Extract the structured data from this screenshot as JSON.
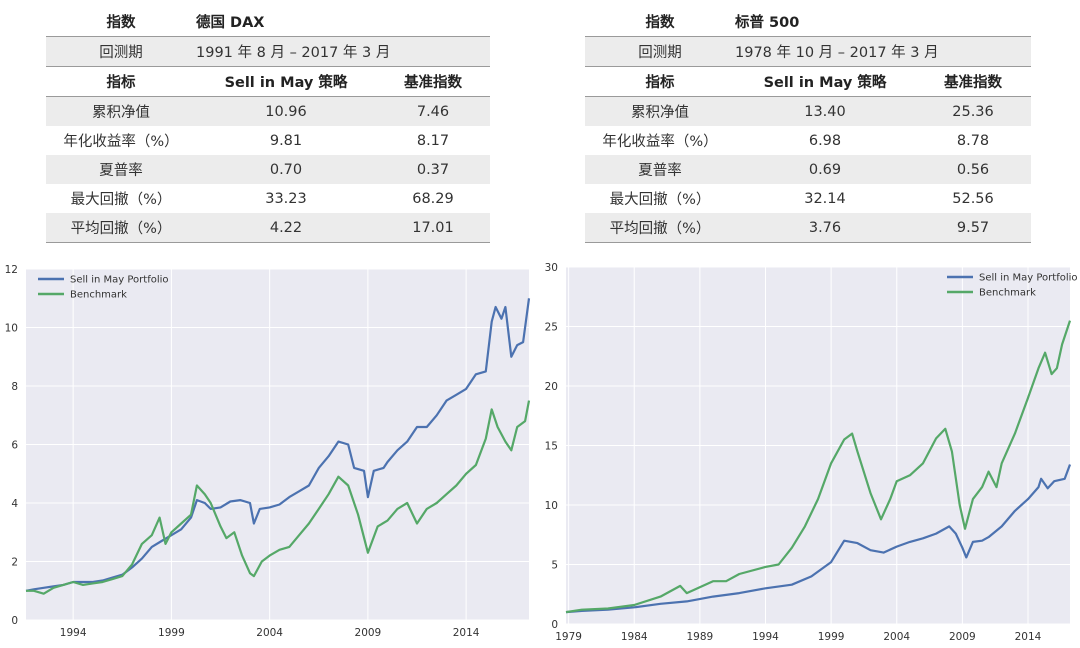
{
  "tables": [
    {
      "index_label": "指数",
      "index_value": "德国 DAX",
      "period_label": "回测期",
      "period_value": "1991 年 8 月 – 2017 年 3 月",
      "col_metric": "指标",
      "col_strategy": "Sell in May 策略",
      "col_bench": "基准指数",
      "rows": [
        {
          "metric": "累积净值",
          "strategy": "10.96",
          "bench": "7.46"
        },
        {
          "metric": "年化收益率（%）",
          "strategy": "9.81",
          "bench": "8.17"
        },
        {
          "metric": "夏普率",
          "strategy": "0.70",
          "bench": "0.37"
        },
        {
          "metric": "最大回撤（%）",
          "strategy": "33.23",
          "bench": "68.29"
        },
        {
          "metric": "平均回撤（%）",
          "strategy": "4.22",
          "bench": "17.01"
        }
      ]
    },
    {
      "index_label": "指数",
      "index_value": "标普 500",
      "period_label": "回测期",
      "period_value": "1978 年 10 月 – 2017 年 3 月",
      "col_metric": "指标",
      "col_strategy": "Sell in May 策略",
      "col_bench": "基准指数",
      "rows": [
        {
          "metric": "累积净值",
          "strategy": "13.40",
          "bench": "25.36"
        },
        {
          "metric": "年化收益率（%）",
          "strategy": "6.98",
          "bench": "8.78"
        },
        {
          "metric": "夏普率",
          "strategy": "0.69",
          "bench": "0.56"
        },
        {
          "metric": "最大回撤（%）",
          "strategy": "32.14",
          "bench": "52.56"
        },
        {
          "metric": "平均回撤（%）",
          "strategy": "3.76",
          "bench": "9.57"
        }
      ]
    }
  ],
  "chart_data": [
    {
      "type": "line",
      "title": "",
      "xlabel": "",
      "ylabel": "",
      "xlim": [
        1991.6,
        2017.2
      ],
      "ylim": [
        0,
        12
      ],
      "xticks": [
        1994,
        1999,
        2004,
        2009,
        2014
      ],
      "yticks": [
        0,
        2,
        4,
        6,
        8,
        10,
        12
      ],
      "grid": true,
      "legend_position": "top-left",
      "series": [
        {
          "name": "Sell in May Portfolio",
          "color": "#4c72b0",
          "points": [
            [
              1991.6,
              1.0
            ],
            [
              1992.0,
              1.05
            ],
            [
              1992.5,
              1.1
            ],
            [
              1993.0,
              1.15
            ],
            [
              1993.5,
              1.2
            ],
            [
              1994.0,
              1.3
            ],
            [
              1994.5,
              1.3
            ],
            [
              1995.0,
              1.3
            ],
            [
              1995.5,
              1.35
            ],
            [
              1996.0,
              1.45
            ],
            [
              1996.5,
              1.55
            ],
            [
              1997.0,
              1.8
            ],
            [
              1997.5,
              2.1
            ],
            [
              1998.0,
              2.5
            ],
            [
              1998.5,
              2.7
            ],
            [
              1999.0,
              2.9
            ],
            [
              1999.5,
              3.1
            ],
            [
              2000.0,
              3.5
            ],
            [
              2000.3,
              4.1
            ],
            [
              2000.7,
              4.0
            ],
            [
              2001.0,
              3.8
            ],
            [
              2001.5,
              3.85
            ],
            [
              2002.0,
              4.05
            ],
            [
              2002.5,
              4.1
            ],
            [
              2003.0,
              4.0
            ],
            [
              2003.2,
              3.3
            ],
            [
              2003.5,
              3.8
            ],
            [
              2004.0,
              3.85
            ],
            [
              2004.5,
              3.95
            ],
            [
              2005.0,
              4.2
            ],
            [
              2005.5,
              4.4
            ],
            [
              2006.0,
              4.6
            ],
            [
              2006.5,
              5.2
            ],
            [
              2007.0,
              5.6
            ],
            [
              2007.5,
              6.1
            ],
            [
              2008.0,
              6.0
            ],
            [
              2008.3,
              5.2
            ],
            [
              2008.8,
              5.1
            ],
            [
              2009.0,
              4.2
            ],
            [
              2009.3,
              5.1
            ],
            [
              2009.8,
              5.2
            ],
            [
              2010.0,
              5.4
            ],
            [
              2010.5,
              5.8
            ],
            [
              2011.0,
              6.1
            ],
            [
              2011.5,
              6.6
            ],
            [
              2012.0,
              6.6
            ],
            [
              2012.5,
              7.0
            ],
            [
              2013.0,
              7.5
            ],
            [
              2013.5,
              7.7
            ],
            [
              2014.0,
              7.9
            ],
            [
              2014.5,
              8.4
            ],
            [
              2015.0,
              8.5
            ],
            [
              2015.3,
              10.2
            ],
            [
              2015.5,
              10.7
            ],
            [
              2015.8,
              10.3
            ],
            [
              2016.0,
              10.7
            ],
            [
              2016.3,
              9.0
            ],
            [
              2016.6,
              9.4
            ],
            [
              2016.9,
              9.5
            ],
            [
              2017.2,
              11.0
            ]
          ]
        },
        {
          "name": "Benchmark",
          "color": "#55a868",
          "points": [
            [
              1991.6,
              1.0
            ],
            [
              1992.0,
              1.0
            ],
            [
              1992.5,
              0.9
            ],
            [
              1993.0,
              1.1
            ],
            [
              1993.5,
              1.2
            ],
            [
              1994.0,
              1.3
            ],
            [
              1994.5,
              1.2
            ],
            [
              1995.0,
              1.25
            ],
            [
              1995.5,
              1.3
            ],
            [
              1996.0,
              1.4
            ],
            [
              1996.5,
              1.5
            ],
            [
              1997.0,
              1.9
            ],
            [
              1997.5,
              2.6
            ],
            [
              1998.0,
              2.9
            ],
            [
              1998.4,
              3.5
            ],
            [
              1998.7,
              2.6
            ],
            [
              1999.0,
              3.0
            ],
            [
              1999.5,
              3.3
            ],
            [
              2000.0,
              3.6
            ],
            [
              2000.3,
              4.6
            ],
            [
              2000.7,
              4.3
            ],
            [
              2001.0,
              4.0
            ],
            [
              2001.5,
              3.2
            ],
            [
              2001.8,
              2.8
            ],
            [
              2002.2,
              3.0
            ],
            [
              2002.6,
              2.2
            ],
            [
              2003.0,
              1.6
            ],
            [
              2003.2,
              1.5
            ],
            [
              2003.6,
              2.0
            ],
            [
              2004.0,
              2.2
            ],
            [
              2004.5,
              2.4
            ],
            [
              2005.0,
              2.5
            ],
            [
              2005.5,
              2.9
            ],
            [
              2006.0,
              3.3
            ],
            [
              2006.5,
              3.8
            ],
            [
              2007.0,
              4.3
            ],
            [
              2007.5,
              4.9
            ],
            [
              2008.0,
              4.6
            ],
            [
              2008.5,
              3.6
            ],
            [
              2009.0,
              2.3
            ],
            [
              2009.5,
              3.2
            ],
            [
              2010.0,
              3.4
            ],
            [
              2010.5,
              3.8
            ],
            [
              2011.0,
              4.0
            ],
            [
              2011.5,
              3.3
            ],
            [
              2012.0,
              3.8
            ],
            [
              2012.5,
              4.0
            ],
            [
              2013.0,
              4.3
            ],
            [
              2013.5,
              4.6
            ],
            [
              2014.0,
              5.0
            ],
            [
              2014.5,
              5.3
            ],
            [
              2015.0,
              6.2
            ],
            [
              2015.3,
              7.2
            ],
            [
              2015.6,
              6.6
            ],
            [
              2016.0,
              6.1
            ],
            [
              2016.3,
              5.8
            ],
            [
              2016.6,
              6.6
            ],
            [
              2017.0,
              6.8
            ],
            [
              2017.2,
              7.5
            ]
          ]
        }
      ]
    },
    {
      "type": "line",
      "title": "",
      "xlabel": "",
      "ylabel": "",
      "xlim": [
        1978.8,
        2017.2
      ],
      "ylim": [
        0,
        30
      ],
      "xticks": [
        1979,
        1984,
        1989,
        1994,
        1999,
        2004,
        2009,
        2014
      ],
      "yticks": [
        0,
        5,
        10,
        15,
        20,
        25,
        30
      ],
      "grid": true,
      "legend_position": "top-right",
      "series": [
        {
          "name": "Sell in May Portfolio",
          "color": "#4c72b0",
          "points": [
            [
              1978.8,
              1.0
            ],
            [
              1980,
              1.1
            ],
            [
              1982,
              1.2
            ],
            [
              1984,
              1.4
            ],
            [
              1986,
              1.7
            ],
            [
              1988,
              1.9
            ],
            [
              1990,
              2.3
            ],
            [
              1992,
              2.6
            ],
            [
              1994,
              3.0
            ],
            [
              1996,
              3.3
            ],
            [
              1997.5,
              4.0
            ],
            [
              1999,
              5.2
            ],
            [
              2000,
              7.0
            ],
            [
              2001,
              6.8
            ],
            [
              2002,
              6.2
            ],
            [
              2003,
              6.0
            ],
            [
              2004,
              6.5
            ],
            [
              2005,
              6.9
            ],
            [
              2006,
              7.2
            ],
            [
              2007,
              7.6
            ],
            [
              2008,
              8.2
            ],
            [
              2008.5,
              7.6
            ],
            [
              2009,
              6.4
            ],
            [
              2009.3,
              5.6
            ],
            [
              2009.8,
              6.9
            ],
            [
              2010.5,
              7.0
            ],
            [
              2011,
              7.3
            ],
            [
              2012,
              8.2
            ],
            [
              2013,
              9.5
            ],
            [
              2014,
              10.5
            ],
            [
              2014.8,
              11.5
            ],
            [
              2015,
              12.2
            ],
            [
              2015.5,
              11.4
            ],
            [
              2016,
              12.0
            ],
            [
              2016.8,
              12.2
            ],
            [
              2017.2,
              13.4
            ]
          ]
        },
        {
          "name": "Benchmark",
          "color": "#55a868",
          "points": [
            [
              1978.8,
              1.0
            ],
            [
              1980,
              1.2
            ],
            [
              1982,
              1.3
            ],
            [
              1984,
              1.6
            ],
            [
              1986,
              2.3
            ],
            [
              1987.5,
              3.2
            ],
            [
              1988,
              2.6
            ],
            [
              1990,
              3.6
            ],
            [
              1991,
              3.6
            ],
            [
              1992,
              4.2
            ],
            [
              1994,
              4.8
            ],
            [
              1995,
              5.0
            ],
            [
              1996,
              6.4
            ],
            [
              1997,
              8.2
            ],
            [
              1998,
              10.5
            ],
            [
              1999,
              13.5
            ],
            [
              2000,
              15.5
            ],
            [
              2000.6,
              16.0
            ],
            [
              2001,
              14.5
            ],
            [
              2002,
              11.0
            ],
            [
              2002.8,
              8.8
            ],
            [
              2003.5,
              10.5
            ],
            [
              2004,
              12.0
            ],
            [
              2005,
              12.5
            ],
            [
              2006,
              13.5
            ],
            [
              2007,
              15.6
            ],
            [
              2007.7,
              16.4
            ],
            [
              2008.2,
              14.5
            ],
            [
              2008.8,
              10.0
            ],
            [
              2009.2,
              8.0
            ],
            [
              2009.8,
              10.5
            ],
            [
              2010.5,
              11.5
            ],
            [
              2011,
              12.8
            ],
            [
              2011.6,
              11.5
            ],
            [
              2012,
              13.5
            ],
            [
              2013,
              16.0
            ],
            [
              2014,
              19.0
            ],
            [
              2014.8,
              21.5
            ],
            [
              2015.3,
              22.8
            ],
            [
              2015.8,
              21.0
            ],
            [
              2016.2,
              21.5
            ],
            [
              2016.6,
              23.5
            ],
            [
              2017.2,
              25.5
            ]
          ]
        }
      ]
    }
  ]
}
